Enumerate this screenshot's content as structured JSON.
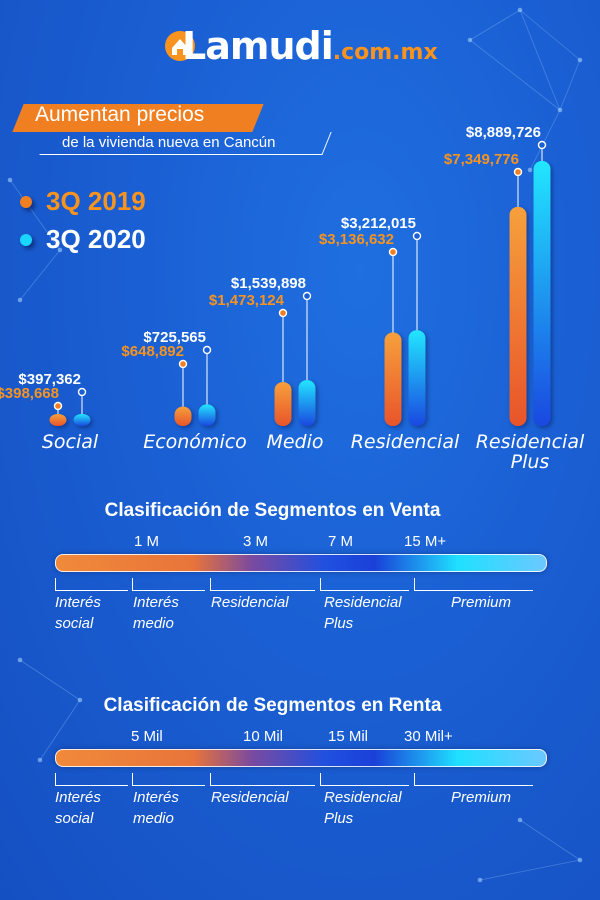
{
  "brand": {
    "logo_main": "Lamudi",
    "logo_domain": ".com.mx",
    "logo_icon": "house-pin-icon"
  },
  "header": {
    "headline": "Aumentan precios",
    "subheadline": "de la vivienda nueva en Cancún"
  },
  "colors": {
    "series_2019": "#f07f22",
    "series_2020": "#1ad6ff",
    "label_2019": "#f7931e",
    "label_2020": "#ffffff"
  },
  "chart_data": {
    "type": "bar",
    "categories": [
      "Social",
      "Económico",
      "Medio",
      "Residencial",
      "Residencial Plus"
    ],
    "series": [
      {
        "name": "3Q 2019",
        "values": [
          398668,
          648892,
          1473124,
          3136632,
          7349776
        ],
        "labels": [
          "$398,668",
          "$648,892",
          "$1,473,124",
          "$3,136,632",
          "$7,349,776"
        ]
      },
      {
        "name": "3Q 2020",
        "values": [
          397362,
          725565,
          1539898,
          3212015,
          8889726
        ],
        "labels": [
          "$397,362",
          "$725,565",
          "$1,539,898",
          "$3,212,015",
          "$8,889,726"
        ]
      }
    ],
    "legend_position": "left"
  },
  "venta": {
    "title": "Clasificación de Segmentos en Venta",
    "ticks": [
      "1 M",
      "3 M",
      "7 M",
      "15 M+"
    ],
    "segments": [
      "Interés social",
      "Interés medio",
      "Residencial",
      "Residencial Plus",
      "Premium"
    ]
  },
  "renta": {
    "title": "Clasificación de Segmentos en Renta",
    "ticks": [
      "5 Mil",
      "10 Mil",
      "15 Mil",
      "30 Mil+"
    ],
    "segments": [
      "Interés social",
      "Interés medio",
      "Residencial",
      "Residencial Plus",
      "Premium"
    ]
  }
}
